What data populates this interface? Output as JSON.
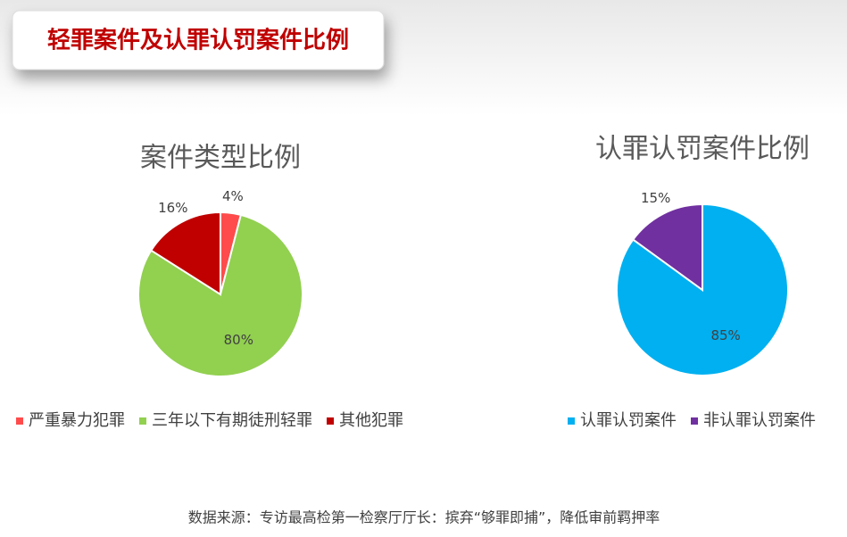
{
  "header": {
    "title": "轻罪案件及认罪认罚案件比例"
  },
  "chart_data": [
    {
      "type": "pie",
      "title": "案件类型比例",
      "categories": [
        "严重暴力犯罪",
        "三年以下有期徒刑轻罪",
        "其他犯罪"
      ],
      "values": [
        4,
        80,
        16
      ],
      "value_labels": [
        "4%",
        "80%",
        "16%"
      ],
      "colors": [
        "#ff4b4b",
        "#92d050",
        "#c00000"
      ],
      "legend": "bottom"
    },
    {
      "type": "pie",
      "title": "认罪认罚案件比例",
      "categories": [
        "认罪认罚案件",
        "非认罪认罚案件"
      ],
      "values": [
        85,
        15
      ],
      "value_labels": [
        "85%",
        "15%"
      ],
      "colors": [
        "#00b0f0",
        "#7030a0"
      ],
      "legend": "bottom"
    }
  ],
  "source": "数据来源：专访最高检第一检察厅厅长：摈弃“够罪即捕”，降低审前羁押率"
}
